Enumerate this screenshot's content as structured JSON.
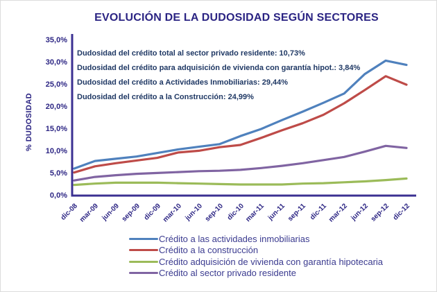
{
  "title": "EVOLUCIÓN DE LA DUDOSIDAD SEGÚN SECTORES",
  "y_axis_label": "% DUDOSIDAD",
  "colors": {
    "axis": "#3b3092",
    "title_text": "#2b2483",
    "annotation_text": "#1f3864",
    "tick_text": "#2b2483"
  },
  "annotations": [
    "Dudosidad del crédito total al sector privado residente: 10,73%",
    "Dudosidad del crédito para adquisición de vivienda con garantía hipot.: 3,84%",
    "Dudosidad del crédito a Actividades Inmobiliarias: 29,44%",
    "Dudosidad del crédito a la Construcción: 24,99%"
  ],
  "chart_data": {
    "type": "line",
    "title": "EVOLUCIÓN DE LA DUDOSIDAD SEGÚN SECTORES",
    "xlabel": "",
    "ylabel": "% DUDOSIDAD",
    "ylim": [
      0,
      35
    ],
    "y_tick_labels": [
      "0,0%",
      "5,0%",
      "10,0%",
      "15,0%",
      "20,0%",
      "25,0%",
      "30,0%",
      "35,0%"
    ],
    "grid": false,
    "legend_position": "bottom",
    "categories": [
      "dic-08",
      "mar-09",
      "jun-09",
      "sep-09",
      "dic-09",
      "mar-10",
      "jun-10",
      "sep-10",
      "dic-10",
      "mar-11",
      "jun-11",
      "sep-11",
      "dic-11",
      "mar-12",
      "jun-12",
      "sep-12",
      "dic-12"
    ],
    "series": [
      {
        "name": "Crédito a las actividades inmobiliarias",
        "color": "#4f81bd",
        "values": [
          6.1,
          7.8,
          8.3,
          8.8,
          9.6,
          10.4,
          11.0,
          11.6,
          13.4,
          15.0,
          17.0,
          18.9,
          20.9,
          23.0,
          27.4,
          30.4,
          29.44
        ]
      },
      {
        "name": "Crédito a la construcción",
        "color": "#be4b48",
        "values": [
          5.2,
          6.6,
          7.3,
          7.9,
          8.5,
          9.7,
          10.1,
          10.9,
          11.4,
          13.0,
          14.7,
          16.3,
          18.2,
          20.8,
          23.8,
          26.9,
          24.99
        ]
      },
      {
        "name": "Crédito adquisición de vivienda con garantía hipotecaria",
        "color": "#9bbb59",
        "values": [
          2.4,
          2.7,
          2.9,
          2.9,
          2.9,
          2.8,
          2.7,
          2.6,
          2.5,
          2.5,
          2.5,
          2.7,
          2.8,
          3.0,
          3.2,
          3.5,
          3.84
        ]
      },
      {
        "name": "Crédito al sector privado residente",
        "color": "#8064a2",
        "values": [
          3.4,
          4.2,
          4.6,
          4.9,
          5.1,
          5.3,
          5.5,
          5.6,
          5.8,
          6.2,
          6.7,
          7.3,
          8.0,
          8.7,
          9.9,
          11.2,
          10.73
        ]
      }
    ]
  }
}
